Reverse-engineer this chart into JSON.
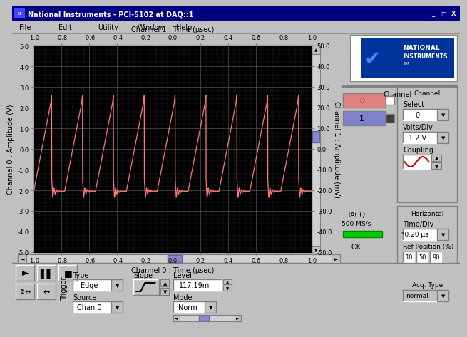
{
  "title": "National Instruments - PCI-5102 at DAQ::1",
  "bg_color": "#c0c0c0",
  "plot_bg": "#000000",
  "signal_color": "#ff7777",
  "top_xlabel": "Channel 1 : Time (µsec)",
  "bottom_xlabel": "Channel 0 : Time (µsec)",
  "left_ylabel": "Channel 0 : Amplitude (V)",
  "right_ylabel": "Channel 1 : Amplitude (mV)",
  "x_ticks": [
    -1.0,
    -0.8,
    -0.6,
    -0.4,
    -0.2,
    0.0,
    0.2,
    0.4,
    0.6,
    0.8,
    1.0
  ],
  "y_left_ticks": [
    -5.0,
    -4.0,
    -3.0,
    -2.0,
    -1.0,
    0.0,
    1.0,
    2.0,
    3.0,
    4.0,
    5.0
  ],
  "y_right_ticks": [
    -50.0,
    -40.0,
    -30.0,
    -20.0,
    -10.0,
    0.0,
    10.0,
    20.0,
    30.0,
    40.0,
    50.0
  ],
  "xlim": [
    -1.0,
    1.0
  ],
  "ylim": [
    -5.0,
    5.0
  ],
  "clock_period": 0.222,
  "amp_high": 2.45,
  "amp_low": -2.05,
  "ringing_amp": 0.45,
  "ringing_freq": 60,
  "ringing_decay": 50
}
